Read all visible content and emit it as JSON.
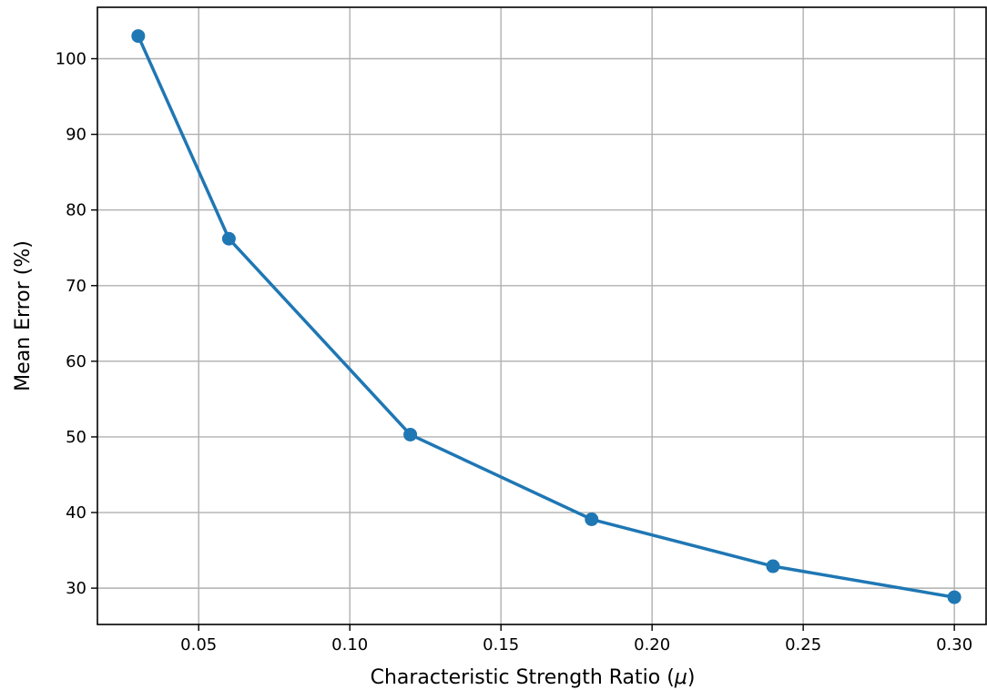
{
  "chart_data": {
    "type": "line",
    "title": "",
    "xlabel": "Characteristic Strength Ratio (",
    "xlabel_symbol": "μ",
    "xlabel_suffix": ")",
    "ylabel": "Mean Error (%)",
    "xlim": [
      0.0165,
      0.3105
    ],
    "ylim": [
      25.2,
      106.8
    ],
    "xticks": [
      0.05,
      0.1,
      0.15,
      0.2,
      0.25,
      0.3
    ],
    "xtick_labels": [
      "0.05",
      "0.10",
      "0.15",
      "0.20",
      "0.25",
      "0.30"
    ],
    "yticks": [
      30,
      40,
      50,
      60,
      70,
      80,
      90,
      100
    ],
    "ytick_labels": [
      "30",
      "40",
      "50",
      "60",
      "70",
      "80",
      "90",
      "100"
    ],
    "grid": true,
    "legend": false,
    "series": [
      {
        "color": "#1f77b4",
        "marker": "circle",
        "x": [
          0.03,
          0.06,
          0.12,
          0.18,
          0.24,
          0.3
        ],
        "y": [
          103.0,
          76.2,
          50.3,
          39.1,
          32.9,
          28.8
        ]
      }
    ]
  }
}
